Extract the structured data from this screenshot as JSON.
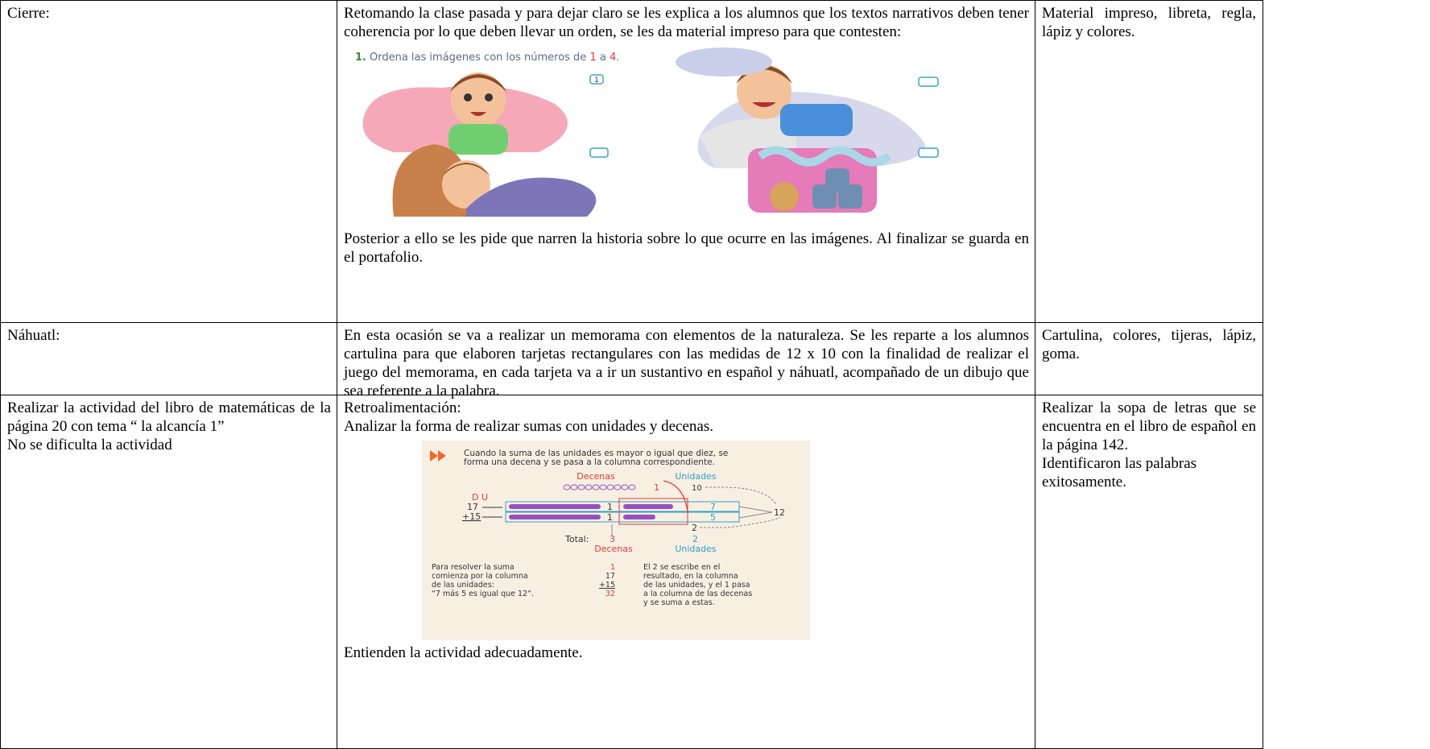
{
  "table": {
    "rows": [
      {
        "label": "Cierre:",
        "intro": "Retomando la clase pasada y para dejar claro se les explica a los alumnos que los textos narrativos deben tener coherencia por lo que deben llevar un orden, se les da material impreso para que contesten:",
        "worksheet": {
          "number": "1.",
          "instruction": [
            "Ordena las imágenes con los números de ",
            "1",
            " a ",
            "4",
            "."
          ],
          "box_label": "1"
        },
        "outro": "Posterior a ello se les pide que narren la historia sobre lo que ocurre en las imágenes. Al finalizar se guarda en el portafolio.",
        "materials": "Material impreso, libreta, regla, lápiz y colores."
      },
      {
        "label": "Náhuatl:",
        "development": "En esta ocasión se va a realizar un memorama con elementos de la naturaleza. Se les reparte a los alumnos cartulina para que elaboren tarjetas rectangulares con las medidas de 12 x 10 con la finalidad de realizar el juego del memorama, en cada tarjeta va a  ir un sustantivo en español y náhuatl, acompañado de un dibujo que sea referente  a la palabra.",
        "materials": "Cartulina, colores, tijeras, lápiz, goma."
      },
      {
        "label": [
          "Realizar la actividad del libro de matemáticas de la página 20 con tema “ la alcancía 1”",
          "No se dificulta la actividad"
        ],
        "development_lines": [
          "Retroalimentación:",
          "Analizar la forma de realizar sumas con unidades y decenas."
        ],
        "math": {
          "banner": [
            "Cuando la suma de las unidades es mayor o igual que diez, se",
            "forma una decena y se pasa a la columna correspondiente."
          ],
          "tens": "Decenas",
          "units": "Unidades",
          "carry": "1",
          "ten": "10",
          "du": "D U",
          "addend1": "17",
          "addend2": "+15",
          "row1_tens": "1",
          "row1_units": "7",
          "row2_tens": "1",
          "row2_units": "5",
          "sum_units": "12",
          "units_digit": "2",
          "total": "Total:",
          "total_tens": "3",
          "total_units": "2",
          "total_tens_label": "Decenas",
          "total_units_label": "Unidades",
          "left_note": [
            "Para resolver la suma",
            "comienza por la columna",
            "de las unidades:",
            "“7 más 5 es igual que 12”."
          ],
          "column_sum": [
            "1",
            "17",
            "+15",
            "32"
          ],
          "right_note": [
            "El 2 se escribe en el",
            "resultado, en la columna",
            "de las unidades, y el 1 pasa",
            "a la columna de las decenas",
            "y se suma a estas."
          ]
        },
        "conclusion": "Entienden la actividad adecuadamente.",
        "materials": [
          "Realizar la sopa de letras que se encuentra en el libro de español en la página 142.",
          "Identificaron las palabras exitosamente."
        ]
      }
    ]
  }
}
